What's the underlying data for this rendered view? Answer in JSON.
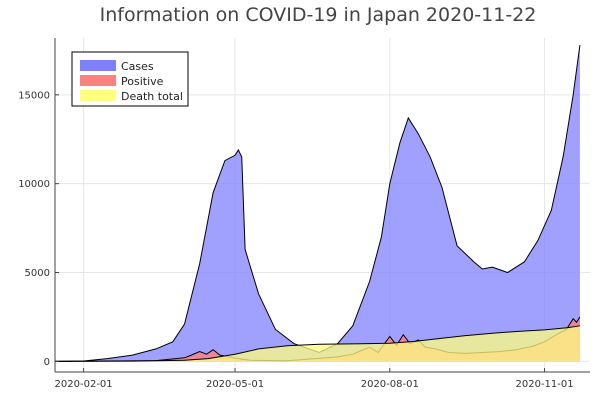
{
  "chart_data": {
    "type": "area",
    "title": "Information on COVID-19 in Japan 2020-11-22",
    "xlabel": "",
    "ylabel": "",
    "x_ticks": [
      "2020-02-01",
      "2020-05-01",
      "2020-08-01",
      "2020-11-01"
    ],
    "y_ticks": [
      "0",
      "5000",
      "10000",
      "15000"
    ],
    "xlim": [
      "2020-01-15",
      "2020-11-28"
    ],
    "ylim": [
      -600,
      18200
    ],
    "grid": true,
    "legend_position": "top-left",
    "series": [
      {
        "name": "Cases",
        "color": "#8080ff",
        "line_color": "#000000",
        "points": [
          [
            "2020-01-15",
            0
          ],
          [
            "2020-02-01",
            20
          ],
          [
            "2020-02-15",
            150
          ],
          [
            "2020-03-01",
            350
          ],
          [
            "2020-03-15",
            700
          ],
          [
            "2020-03-25",
            1100
          ],
          [
            "2020-04-01",
            2100
          ],
          [
            "2020-04-10",
            5500
          ],
          [
            "2020-04-18",
            9500
          ],
          [
            "2020-04-25",
            11300
          ],
          [
            "2020-05-01",
            11600
          ],
          [
            "2020-05-03",
            11900
          ],
          [
            "2020-05-05",
            11500
          ],
          [
            "2020-05-07",
            6300
          ],
          [
            "2020-05-15",
            3800
          ],
          [
            "2020-05-25",
            1800
          ],
          [
            "2020-06-05",
            1000
          ],
          [
            "2020-06-20",
            500
          ],
          [
            "2020-07-01",
            1000
          ],
          [
            "2020-07-10",
            2000
          ],
          [
            "2020-07-20",
            4500
          ],
          [
            "2020-07-27",
            7000
          ],
          [
            "2020-08-01",
            10000
          ],
          [
            "2020-08-07",
            12300
          ],
          [
            "2020-08-12",
            13700
          ],
          [
            "2020-08-18",
            12800
          ],
          [
            "2020-08-25",
            11500
          ],
          [
            "2020-09-01",
            9800
          ],
          [
            "2020-09-10",
            6500
          ],
          [
            "2020-09-20",
            5600
          ],
          [
            "2020-09-25",
            5200
          ],
          [
            "2020-10-01",
            5300
          ],
          [
            "2020-10-10",
            5000
          ],
          [
            "2020-10-20",
            5600
          ],
          [
            "2020-10-28",
            6800
          ],
          [
            "2020-11-05",
            8500
          ],
          [
            "2020-11-12",
            11500
          ],
          [
            "2020-11-18",
            15000
          ],
          [
            "2020-11-22",
            17800
          ]
        ]
      },
      {
        "name": "Positive",
        "color": "#ff8080",
        "line_color": "#000000",
        "points": [
          [
            "2020-01-15",
            0
          ],
          [
            "2020-03-15",
            40
          ],
          [
            "2020-04-01",
            200
          ],
          [
            "2020-04-05",
            350
          ],
          [
            "2020-04-10",
            550
          ],
          [
            "2020-04-14",
            400
          ],
          [
            "2020-04-18",
            650
          ],
          [
            "2020-04-22",
            350
          ],
          [
            "2020-04-26",
            280
          ],
          [
            "2020-05-01",
            180
          ],
          [
            "2020-05-10",
            60
          ],
          [
            "2020-06-01",
            30
          ],
          [
            "2020-07-01",
            250
          ],
          [
            "2020-07-10",
            400
          ],
          [
            "2020-07-20",
            800
          ],
          [
            "2020-07-25",
            500
          ],
          [
            "2020-08-01",
            1400
          ],
          [
            "2020-08-05",
            900
          ],
          [
            "2020-08-09",
            1500
          ],
          [
            "2020-08-13",
            1000
          ],
          [
            "2020-08-18",
            1200
          ],
          [
            "2020-08-22",
            800
          ],
          [
            "2020-08-28",
            700
          ],
          [
            "2020-09-05",
            500
          ],
          [
            "2020-09-15",
            450
          ],
          [
            "2020-09-25",
            500
          ],
          [
            "2020-10-05",
            550
          ],
          [
            "2020-10-15",
            650
          ],
          [
            "2020-10-25",
            850
          ],
          [
            "2020-11-01",
            1100
          ],
          [
            "2020-11-08",
            1500
          ],
          [
            "2020-11-14",
            1800
          ],
          [
            "2020-11-18",
            2400
          ],
          [
            "2020-11-20",
            2200
          ],
          [
            "2020-11-22",
            2500
          ]
        ]
      },
      {
        "name": "Death total",
        "color": "#ffff80",
        "line_color": "#000000",
        "points": [
          [
            "2020-01-15",
            0
          ],
          [
            "2020-03-01",
            10
          ],
          [
            "2020-04-01",
            60
          ],
          [
            "2020-04-15",
            150
          ],
          [
            "2020-05-01",
            400
          ],
          [
            "2020-05-15",
            700
          ],
          [
            "2020-06-01",
            880
          ],
          [
            "2020-06-20",
            960
          ],
          [
            "2020-07-15",
            990
          ],
          [
            "2020-08-01",
            1020
          ],
          [
            "2020-08-15",
            1120
          ],
          [
            "2020-09-01",
            1300
          ],
          [
            "2020-09-15",
            1450
          ],
          [
            "2020-10-01",
            1580
          ],
          [
            "2020-10-15",
            1680
          ],
          [
            "2020-11-01",
            1770
          ],
          [
            "2020-11-15",
            1900
          ],
          [
            "2020-11-22",
            2000
          ]
        ]
      }
    ]
  }
}
